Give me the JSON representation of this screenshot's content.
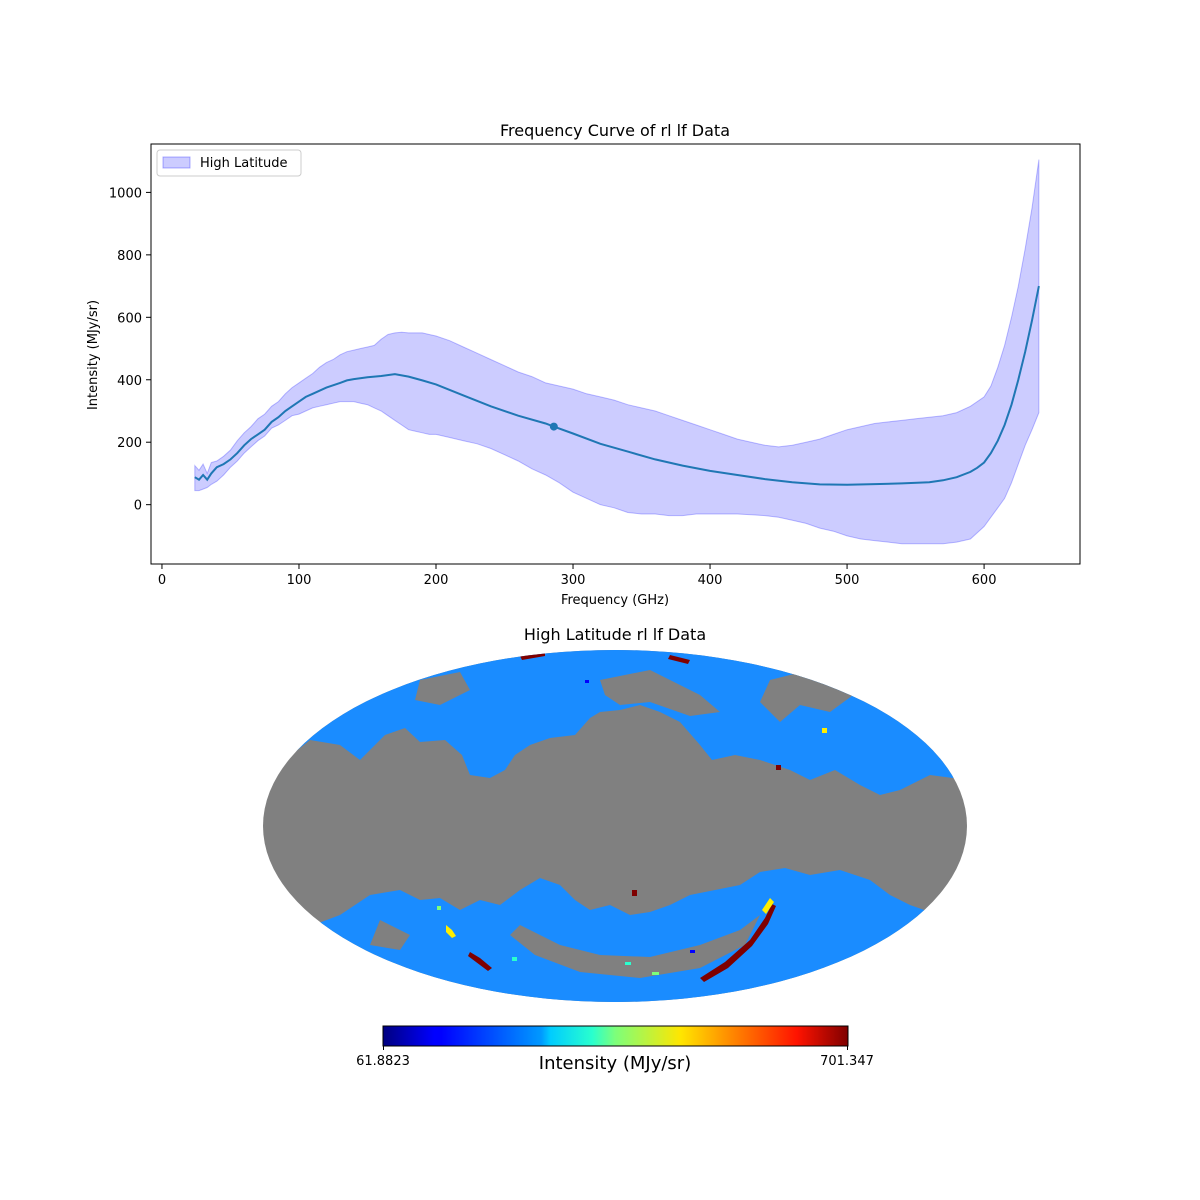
{
  "chart_data": [
    {
      "type": "line",
      "title": "Frequency Curve of rl lf Data",
      "xlabel": "Frequency (GHz)",
      "ylabel": "Intensity (MJy/sr)",
      "xlim": [
        -8,
        670
      ],
      "ylim": [
        -190,
        1155
      ],
      "xticks": [
        0,
        100,
        200,
        300,
        400,
        500,
        600
      ],
      "yticks": [
        0,
        200,
        400,
        600,
        800,
        1000
      ],
      "grid": false,
      "legend": {
        "placement": "top-left",
        "entries": [
          "High Latitude"
        ]
      },
      "series": [
        {
          "name": "High Latitude",
          "kind": "band",
          "x": [
            24,
            27,
            30,
            33,
            36,
            40,
            45,
            50,
            55,
            60,
            65,
            70,
            75,
            80,
            85,
            90,
            95,
            100,
            105,
            110,
            115,
            120,
            125,
            130,
            135,
            140,
            145,
            150,
            155,
            160,
            165,
            170,
            175,
            180,
            185,
            190,
            195,
            200,
            210,
            220,
            230,
            240,
            250,
            260,
            270,
            280,
            290,
            300,
            310,
            320,
            330,
            340,
            350,
            360,
            370,
            380,
            390,
            400,
            410,
            420,
            430,
            440,
            450,
            460,
            470,
            480,
            490,
            500,
            510,
            520,
            530,
            540,
            550,
            560,
            570,
            580,
            590,
            600,
            605,
            610,
            615,
            620,
            625,
            630,
            635,
            640
          ],
          "upper": [
            125,
            110,
            130,
            100,
            135,
            140,
            155,
            175,
            205,
            230,
            250,
            275,
            290,
            315,
            330,
            355,
            375,
            390,
            405,
            420,
            440,
            455,
            465,
            480,
            490,
            495,
            500,
            505,
            510,
            530,
            545,
            550,
            552,
            550,
            550,
            550,
            545,
            540,
            525,
            505,
            485,
            465,
            445,
            425,
            410,
            390,
            380,
            370,
            355,
            345,
            335,
            320,
            310,
            300,
            285,
            270,
            255,
            240,
            225,
            210,
            200,
            190,
            185,
            190,
            200,
            210,
            225,
            240,
            250,
            260,
            265,
            270,
            275,
            280,
            285,
            295,
            315,
            345,
            380,
            440,
            510,
            600,
            700,
            820,
            950,
            1105
          ],
          "lower": [
            45,
            45,
            50,
            55,
            65,
            75,
            95,
            120,
            140,
            165,
            185,
            205,
            220,
            245,
            255,
            270,
            285,
            290,
            300,
            310,
            315,
            320,
            325,
            330,
            330,
            330,
            325,
            320,
            310,
            300,
            285,
            270,
            255,
            240,
            235,
            230,
            225,
            225,
            215,
            205,
            195,
            180,
            160,
            140,
            115,
            95,
            70,
            40,
            20,
            0,
            -10,
            -25,
            -30,
            -30,
            -35,
            -35,
            -30,
            -30,
            -30,
            -30,
            -32,
            -35,
            -40,
            -50,
            -60,
            -75,
            -85,
            -100,
            -110,
            -115,
            -120,
            -125,
            -125,
            -125,
            -125,
            -120,
            -110,
            -70,
            -40,
            -10,
            20,
            70,
            130,
            190,
            240,
            295
          ]
        },
        {
          "name": "",
          "kind": "line",
          "color": "#1f77b4",
          "x": [
            24,
            27,
            30,
            33,
            36,
            40,
            45,
            50,
            55,
            60,
            65,
            70,
            75,
            80,
            85,
            90,
            95,
            100,
            105,
            110,
            120,
            130,
            135,
            140,
            150,
            160,
            170,
            180,
            190,
            200,
            220,
            240,
            260,
            280,
            286,
            300,
            320,
            340,
            360,
            380,
            400,
            420,
            440,
            460,
            480,
            500,
            520,
            540,
            560,
            570,
            580,
            590,
            595,
            600,
            605,
            610,
            615,
            620,
            625,
            630,
            635,
            640
          ],
          "y": [
            88,
            80,
            95,
            80,
            100,
            120,
            130,
            145,
            165,
            190,
            210,
            225,
            240,
            265,
            280,
            300,
            315,
            330,
            345,
            355,
            375,
            390,
            398,
            402,
            408,
            412,
            418,
            410,
            398,
            385,
            350,
            315,
            285,
            260,
            250,
            228,
            195,
            170,
            145,
            125,
            108,
            95,
            82,
            72,
            65,
            64,
            66,
            68,
            72,
            78,
            88,
            105,
            118,
            135,
            165,
            205,
            255,
            320,
            400,
            490,
            590,
            700
          ]
        }
      ],
      "annotations": [
        {
          "type": "marker",
          "x": 286,
          "y": 250
        }
      ]
    },
    {
      "type": "heatmap",
      "projection": "mollweide",
      "title": "High Latitude rl lf Data",
      "colorbar": {
        "label": "Intensity (MJy/sr)",
        "min_label": "61.8823",
        "max_label": "701.347",
        "colormap": "jet"
      },
      "masked_color": "#808080",
      "dominant_color": "#1a8cff"
    }
  ]
}
